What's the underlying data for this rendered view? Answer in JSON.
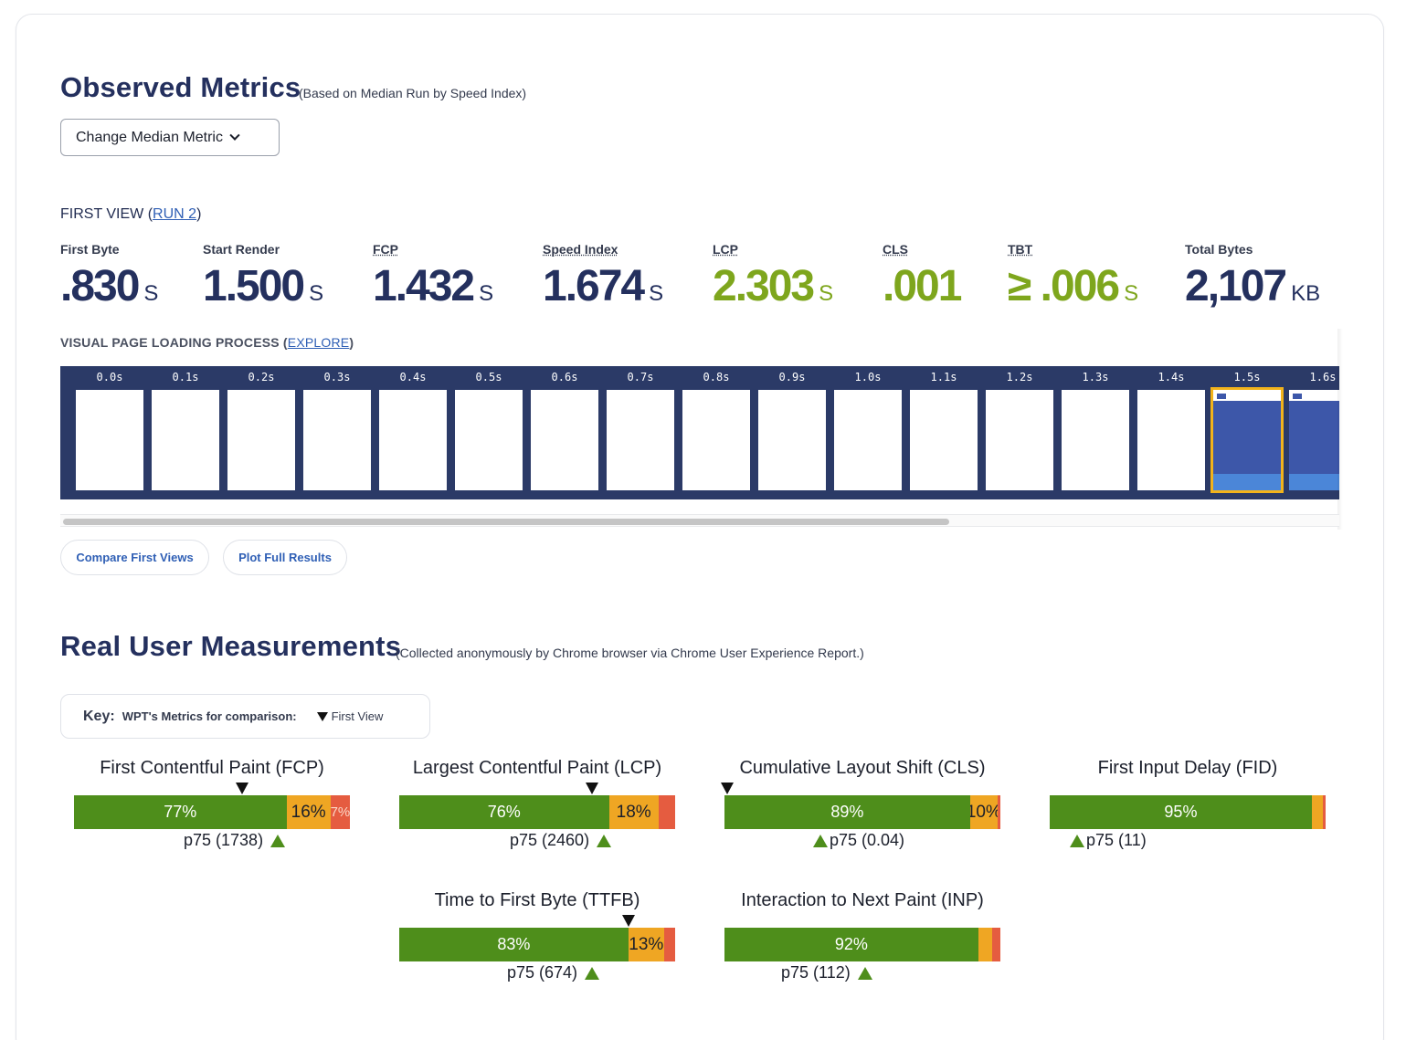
{
  "observed": {
    "title": "Observed Metrics",
    "subtitle": "(Based on Median Run by Speed Index)",
    "median_button": "Change Median Metric",
    "first_view_prefix": "FIRST VIEW (",
    "first_view_link": "RUN 2",
    "first_view_suffix": ")",
    "metrics": [
      {
        "label": "First Byte",
        "value": ".830",
        "unit": "S",
        "status": "neutral"
      },
      {
        "label": "Start Render",
        "value": "1.500",
        "unit": "S",
        "status": "neutral"
      },
      {
        "label": "FCP",
        "value": "1.432",
        "unit": "S",
        "status": "neutral"
      },
      {
        "label": "Speed Index",
        "value": "1.674",
        "unit": "S",
        "status": "neutral"
      },
      {
        "label": "LCP",
        "value": "2.303",
        "unit": "S",
        "status": "good"
      },
      {
        "label": "CLS",
        "value": ".001",
        "unit": "",
        "status": "good"
      },
      {
        "label": "TBT",
        "value": "≥ .006",
        "unit": "S",
        "status": "good"
      },
      {
        "label": "Total Bytes",
        "value": "2,107",
        "unit": "KB",
        "status": "neutral"
      }
    ],
    "visual_label": "VISUAL PAGE LOADING PROCESS",
    "visual_link_open": "(",
    "visual_link": "EXPLORE",
    "visual_link_close": ")",
    "frames": [
      {
        "time": "0.0s",
        "state": "blank"
      },
      {
        "time": "0.1s",
        "state": "blank"
      },
      {
        "time": "0.2s",
        "state": "blank"
      },
      {
        "time": "0.3s",
        "state": "blank"
      },
      {
        "time": "0.4s",
        "state": "blank"
      },
      {
        "time": "0.5s",
        "state": "blank"
      },
      {
        "time": "0.6s",
        "state": "blank"
      },
      {
        "time": "0.7s",
        "state": "blank"
      },
      {
        "time": "0.8s",
        "state": "blank"
      },
      {
        "time": "0.9s",
        "state": "blank"
      },
      {
        "time": "1.0s",
        "state": "blank"
      },
      {
        "time": "1.1s",
        "state": "blank"
      },
      {
        "time": "1.2s",
        "state": "blank"
      },
      {
        "time": "1.3s",
        "state": "blank"
      },
      {
        "time": "1.4s",
        "state": "blank"
      },
      {
        "time": "1.5s",
        "state": "loaded-selected"
      },
      {
        "time": "1.6s",
        "state": "loaded"
      }
    ],
    "buttons": {
      "compare": "Compare First Views",
      "plot": "Plot Full Results"
    }
  },
  "rum": {
    "title": "Real User Measurements",
    "subtitle": "(Collected anonymously by Chrome browser via Chrome User Experience Report.)",
    "key_label": "Key:",
    "key_text": "WPT's Metrics for comparison:",
    "key_first_view": "First View",
    "charts": [
      {
        "title": "First Contentful Paint (FCP)",
        "good": 77,
        "ni": 16,
        "poor": 7,
        "good_label": "77%",
        "ni_label": "16%",
        "poor_label": "7%",
        "p75": "p75 (1738)",
        "wpt_at": 0.61
      },
      {
        "title": "Largest Contentful Paint (LCP)",
        "good": 76,
        "ni": 18,
        "poor": 6,
        "good_label": "76%",
        "ni_label": "18%",
        "poor_label": "",
        "p75": "p75 (2460)",
        "wpt_at": 0.7
      },
      {
        "title": "Cumulative Layout Shift (CLS)",
        "good": 89,
        "ni": 10,
        "poor": 1,
        "good_label": "89%",
        "ni_label": "10%",
        "poor_label": "",
        "p75": "p75 (0.04)",
        "wpt_at": 0.01
      },
      {
        "title": "First Input Delay (FID)",
        "good": 95,
        "ni": 4,
        "poor": 1,
        "good_label": "95%",
        "ni_label": "",
        "poor_label": "",
        "p75": "p75 (11)",
        "wpt_at": null
      },
      {
        "title": "Time to First Byte (TTFB)",
        "good": 83,
        "ni": 13,
        "poor": 4,
        "good_label": "83%",
        "ni_label": "13%",
        "poor_label": "",
        "p75": "p75 (674)",
        "wpt_at": 0.83
      },
      {
        "title": "Interaction to Next Paint (INP)",
        "good": 92,
        "ni": 5,
        "poor": 3,
        "good_label": "92%",
        "ni_label": "",
        "poor_label": "",
        "p75": "p75 (112)",
        "wpt_at": null
      }
    ]
  },
  "colors": {
    "good": "#4e8e1b",
    "needs_improvement": "#efa623",
    "poor": "#e55c40",
    "brand": "#24305e",
    "link": "#2f5fb5"
  }
}
